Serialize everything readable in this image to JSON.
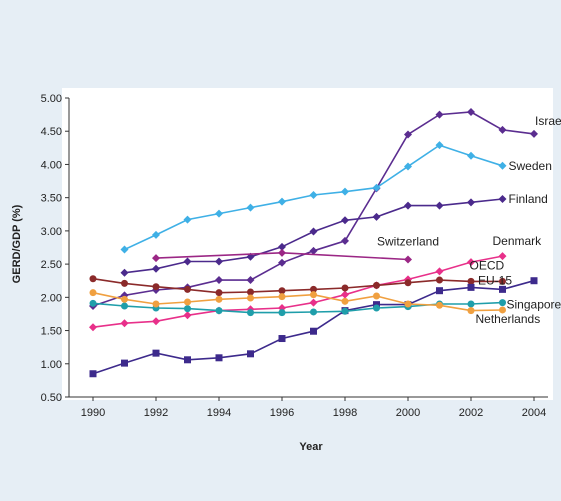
{
  "chart_data": {
    "type": "line",
    "title": "",
    "xlabel": "Year",
    "ylabel": "GERD/GDP (%)",
    "xlim": [
      1990,
      2005
    ],
    "ylim": [
      0.5,
      5.0
    ],
    "x_ticks": [
      1990,
      1992,
      1994,
      1996,
      1998,
      2000,
      2002,
      2004
    ],
    "y_ticks": [
      "0.50",
      "1.00",
      "1.50",
      "2.00",
      "2.50",
      "3.00",
      "3.50",
      "4.00",
      "4.50",
      "5.00"
    ],
    "grid": "none",
    "legend": "labels at line ends",
    "series": [
      {
        "name": "Israel",
        "color": "#5b2d90",
        "marker": "diamond",
        "x": [
          1990,
          1991,
          1992,
          1993,
          1994,
          1995,
          1996,
          1997,
          1998,
          1999,
          2000,
          2001,
          2002,
          2003,
          2004
        ],
        "y": [
          1.87,
          2.03,
          2.11,
          2.15,
          2.26,
          2.26,
          2.52,
          2.7,
          2.85,
          3.64,
          4.45,
          4.75,
          4.79,
          4.52,
          4.46
        ]
      },
      {
        "name": "Sweden",
        "color": "#3fb0e6",
        "marker": "diamond",
        "x": [
          1991,
          1992,
          1993,
          1994,
          1995,
          1996,
          1997,
          1998,
          1999,
          2000,
          2001,
          2002,
          2003
        ],
        "y": [
          2.72,
          2.94,
          3.17,
          3.26,
          3.35,
          3.44,
          3.54,
          3.59,
          3.65,
          3.97,
          4.29,
          4.13,
          3.98
        ]
      },
      {
        "name": "Finland",
        "color": "#4b2a8c",
        "marker": "diamond",
        "x": [
          1991,
          1992,
          1993,
          1994,
          1995,
          1996,
          1997,
          1998,
          1999,
          2000,
          2001,
          2002,
          2003
        ],
        "y": [
          2.37,
          2.43,
          2.54,
          2.54,
          2.61,
          2.76,
          2.99,
          3.16,
          3.21,
          3.38,
          3.38,
          3.43,
          3.48
        ]
      },
      {
        "name": "Switzerland",
        "color": "#9b2785",
        "marker": "diamond",
        "x": [
          1992,
          1996,
          2000
        ],
        "y": [
          2.59,
          2.67,
          2.57
        ]
      },
      {
        "name": "Denmark",
        "color": "#e8308a",
        "marker": "diamond",
        "x": [
          1990,
          1991,
          1992,
          1993,
          1994,
          1995,
          1996,
          1997,
          1998,
          1999,
          2000,
          2001,
          2002,
          2003
        ],
        "y": [
          1.55,
          1.61,
          1.64,
          1.73,
          1.8,
          1.82,
          1.84,
          1.92,
          2.04,
          2.18,
          2.27,
          2.39,
          2.53,
          2.62
        ]
      },
      {
        "name": "OECD",
        "color": "#8b2a2a",
        "marker": "circle",
        "x": [
          1990,
          1991,
          1992,
          1993,
          1994,
          1995,
          1996,
          1997,
          1998,
          1999,
          2000,
          2001,
          2002,
          2003
        ],
        "y": [
          2.28,
          2.21,
          2.16,
          2.12,
          2.07,
          2.08,
          2.1,
          2.12,
          2.14,
          2.18,
          2.22,
          2.26,
          2.24,
          2.24
        ]
      },
      {
        "name": "EU-15",
        "color": "#3d2a8c",
        "marker": "square",
        "x": [
          1990,
          1991,
          1992,
          1993,
          1994,
          1995,
          1996,
          1997,
          1998,
          1999,
          2000,
          2001,
          2002,
          2003,
          2004
        ],
        "y": [
          0.85,
          1.01,
          1.16,
          1.06,
          1.09,
          1.15,
          1.38,
          1.49,
          1.8,
          1.89,
          1.89,
          2.1,
          2.15,
          2.12,
          2.25
        ]
      },
      {
        "name": "Singapore",
        "color": "#1f9eaa",
        "marker": "circle",
        "x": [
          1990,
          1991,
          1992,
          1993,
          1994,
          1995,
          1996,
          1997,
          1998,
          1999,
          2000,
          2001,
          2002,
          2003
        ],
        "y": [
          1.91,
          1.87,
          1.84,
          1.83,
          1.8,
          1.77,
          1.77,
          1.78,
          1.79,
          1.84,
          1.86,
          1.9,
          1.9,
          1.92
        ]
      },
      {
        "name": "Netherlands",
        "color": "#f0a040",
        "marker": "circle",
        "x": [
          1990,
          1991,
          1992,
          1993,
          1994,
          1995,
          1996,
          1997,
          1998,
          1999,
          2000,
          2001,
          2002,
          2003
        ],
        "y": [
          2.07,
          1.97,
          1.9,
          1.93,
          1.97,
          1.99,
          2.01,
          2.04,
          1.94,
          2.02,
          1.9,
          1.88,
          1.8,
          1.81
        ]
      }
    ]
  }
}
